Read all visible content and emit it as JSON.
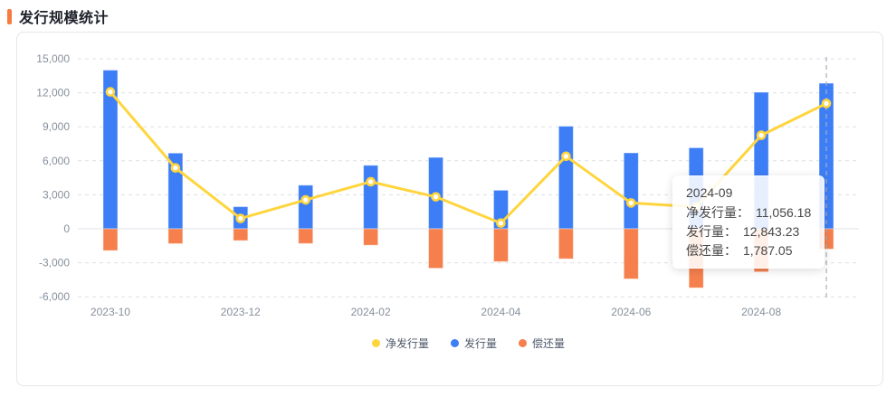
{
  "header": {
    "title": "发行规模统计"
  },
  "colors": {
    "accent": "#F87B3F",
    "net_line": "#FFD53E",
    "issuance_bar": "#3D7EF6",
    "repayment_bar": "#F5804E",
    "bar_edge": "rgba(255,255,255,0.4)",
    "axis_text": "#86909c",
    "grid_line": "#dcdfe6",
    "zero_line": "#e0e3e8",
    "crosshair": "#a9aeb8",
    "legend_text": "#4e5969",
    "tooltip_text": "#474747"
  },
  "chart_data": {
    "type": "bar",
    "subtype": "stacked-diverging bars with line overlay",
    "title": "发行规模统计",
    "categories": [
      "2023-10",
      "2023-11",
      "2023-12",
      "2024-01",
      "2024-02",
      "2024-03",
      "2024-04",
      "2024-05",
      "2024-06",
      "2024-07",
      "2024-08",
      "2024-09"
    ],
    "x_axis_visible_labels": [
      "2023-10",
      "2023-12",
      "2024-02",
      "2024-04",
      "2024-06",
      "2024-08"
    ],
    "x_tick_indices": [
      0,
      2,
      4,
      6,
      8,
      10
    ],
    "series": [
      {
        "name": "净发行量",
        "type": "line",
        "color": "#FFD53E",
        "values": [
          12080,
          5370,
          910,
          2550,
          4150,
          2820,
          500,
          6400,
          2280,
          1940,
          8250,
          11056.18
        ]
      },
      {
        "name": "发行量",
        "type": "bar",
        "color": "#3D7EF6",
        "values": [
          14000,
          6680,
          1950,
          3850,
          5600,
          6300,
          3400,
          9050,
          6700,
          7150,
          12050,
          12843.23
        ]
      },
      {
        "name": "偿还量",
        "type": "bar",
        "color": "#F5804E",
        "values": [
          -1920,
          -1310,
          -1040,
          -1300,
          -1450,
          -3480,
          -2900,
          -2650,
          -4420,
          -5210,
          -3800,
          -1787.05
        ]
      }
    ],
    "ylim": [
      -6000,
      15000
    ],
    "y_tick_step": 3000,
    "y_tick_labels": [
      "15,000",
      "12,000",
      "9,000",
      "6,000",
      "3,000",
      "0",
      "-3,000",
      "-6,000"
    ],
    "grid": "dashed horizontal, solid zero line",
    "legend_position": "bottom",
    "highlighted_category": "2024-09"
  },
  "legend": {
    "items": [
      {
        "label": "净发行量",
        "color": "#FFD53E",
        "key": "net-issuance"
      },
      {
        "label": "发行量",
        "color": "#3D7EF6",
        "key": "issuance"
      },
      {
        "label": "偿还量",
        "color": "#F5804E",
        "key": "repayment"
      }
    ]
  },
  "tooltip": {
    "title": "2024-09",
    "rows": [
      {
        "label": "净发行量",
        "value": "11,056.18"
      },
      {
        "label": "发行量",
        "value": "12,843.23"
      },
      {
        "label": "偿还量",
        "value": "1,787.05"
      }
    ]
  }
}
